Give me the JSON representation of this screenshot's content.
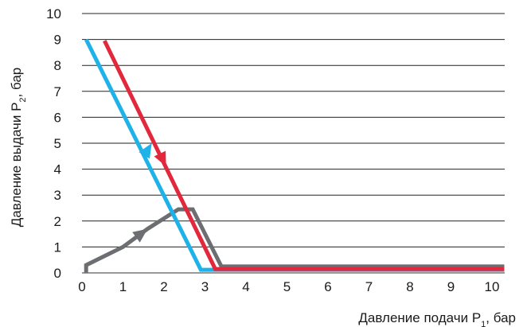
{
  "chart_data": {
    "type": "line",
    "title": "",
    "xlabel": "Давление подачи P",
    "xlabel_sub": "1",
    "xlabel_suffix": ", бар",
    "ylabel": "Давление выдачи P",
    "ylabel_sub": "2",
    "ylabel_suffix": ", бар",
    "xlim": [
      0,
      10.3
    ],
    "ylim": [
      0,
      10
    ],
    "x_ticks": [
      0,
      1,
      2,
      3,
      4,
      5,
      6,
      7,
      8,
      9,
      10
    ],
    "y_ticks": [
      0,
      1,
      2,
      3,
      4,
      5,
      6,
      7,
      8,
      9,
      10
    ],
    "grid": "horizontal",
    "legend": "none",
    "series": [
      {
        "color": "#6d6e71",
        "points": [
          [
            0.1,
            0
          ],
          [
            0.1,
            0.3
          ],
          [
            1.0,
            1.0
          ],
          [
            1.6,
            1.7
          ],
          [
            2.35,
            2.45
          ],
          [
            2.7,
            2.45
          ],
          [
            3.4,
            0.25
          ],
          [
            10.3,
            0.25
          ]
        ],
        "arrows": [
          [
            1.0,
            1.0,
            1.6,
            1.7
          ]
        ]
      },
      {
        "color": "#1fb2e8",
        "points": [
          [
            0.1,
            9.0
          ],
          [
            2.9,
            0.12
          ],
          [
            10.3,
            0.12
          ]
        ],
        "arrows": [
          [
            1.2,
            3.7,
            1.7,
            5.0
          ]
        ]
      },
      {
        "color": "#e2283c",
        "points": [
          [
            0.55,
            8.95
          ],
          [
            3.25,
            0.15
          ],
          [
            10.3,
            0.15
          ]
        ],
        "arrows": [
          [
            1.6,
            5.6,
            2.05,
            4.1
          ]
        ]
      }
    ]
  }
}
